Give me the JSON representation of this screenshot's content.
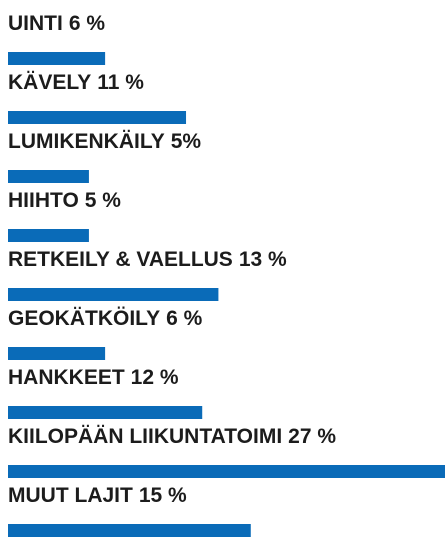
{
  "chart_data": {
    "type": "bar",
    "orientation": "horizontal",
    "color": "#0a6bb8",
    "categories": [
      "UINTI",
      "KÄVELY",
      "LUMIKENKÄILY",
      "HIIHTO",
      "RETKEILY & VAELLUS",
      "GEOKÄTKÖILY",
      "HANKKEET",
      "KIILOPÄÄN LIIKUNTATOIMI",
      "MUUT LAJIT"
    ],
    "values": [
      6,
      11,
      5,
      5,
      13,
      6,
      12,
      27,
      15
    ],
    "value_labels": [
      "6 %",
      "11 %",
      "5%",
      "5 %",
      "13 %",
      "6 %",
      "12 %",
      "27 %",
      "15 %"
    ]
  }
}
